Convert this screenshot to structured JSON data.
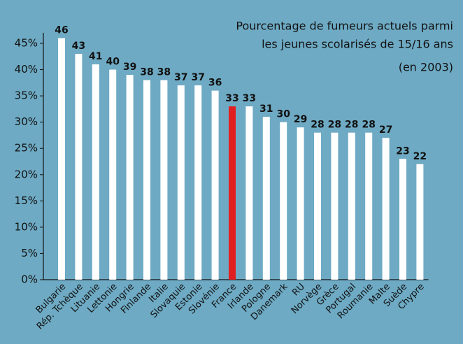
{
  "chart_data": {
    "type": "bar",
    "title": [
      "Pourcentage de fumeurs actuels parmi",
      "les jeunes scolarisés de 15/16 ans",
      "(en 2003)"
    ],
    "categories": [
      "Bulgarie",
      "Rép. Tchèque",
      "Lituanie",
      "Lettonie",
      "Hongrie",
      "Finlande",
      "Italie",
      "Slovaquie",
      "Estonie",
      "Slovénie",
      "France",
      "Irlande",
      "Pologne",
      "Danemark",
      "RU",
      "Norvège",
      "Grèce",
      "Portugal",
      "Roumanie",
      "Malte",
      "Suède",
      "Chypre"
    ],
    "values": [
      46,
      43,
      41,
      40,
      39,
      38,
      38,
      37,
      37,
      36,
      33,
      33,
      31,
      30,
      29,
      28,
      28,
      28,
      28,
      27,
      23,
      22
    ],
    "colors": [
      "#ffffff",
      "#ffffff",
      "#ffffff",
      "#ffffff",
      "#ffffff",
      "#ffffff",
      "#ffffff",
      "#ffffff",
      "#ffffff",
      "#ffffff",
      "#e02020",
      "#ffffff",
      "#ffffff",
      "#ffffff",
      "#ffffff",
      "#ffffff",
      "#ffffff",
      "#ffffff",
      "#ffffff",
      "#ffffff",
      "#ffffff",
      "#ffffff"
    ],
    "background": "#6eaac4",
    "ylim": [
      0,
      47
    ],
    "yticks": [
      {
        "value": 0,
        "label": "0%"
      },
      {
        "value": 5,
        "label": "5%"
      },
      {
        "value": 10,
        "label": "10%"
      },
      {
        "value": 15,
        "label": "15%"
      },
      {
        "value": 20,
        "label": "20%"
      },
      {
        "value": 25,
        "label": "25%"
      },
      {
        "value": 30,
        "label": "30%"
      },
      {
        "value": 35,
        "label": "35%"
      },
      {
        "value": 40,
        "label": "40%"
      },
      {
        "value": 45,
        "label": "45%"
      }
    ]
  }
}
